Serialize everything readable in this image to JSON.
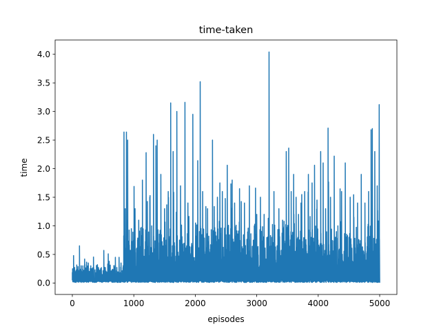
{
  "chart_data": {
    "type": "line",
    "title": "time-taken",
    "xlabel": "episodes",
    "ylabel": "time",
    "xlim": [
      -280,
      5280
    ],
    "ylim": [
      -0.2,
      4.25
    ],
    "xticks": [
      0,
      1000,
      2000,
      3000,
      4000,
      5000
    ],
    "xtick_labels": [
      "0",
      "1000",
      "2000",
      "3000",
      "4000",
      "5000"
    ],
    "yticks": [
      0.0,
      0.5,
      1.0,
      1.5,
      2.0,
      2.5,
      3.0,
      3.5,
      4.0
    ],
    "ytick_labels": [
      "0.0",
      "0.5",
      "1.0",
      "1.5",
      "2.0",
      "2.5",
      "3.0",
      "3.5",
      "4.0"
    ],
    "grid": false,
    "legend": "none",
    "series": [
      {
        "color": "#1f77b4",
        "episodes": 5000,
        "baseline": 0.05,
        "phases": [
          {
            "from": 0,
            "to": 830,
            "typical_max": 0.3
          },
          {
            "from": 830,
            "to": 5000,
            "typical_max": 1.1
          }
        ],
        "spikes": [
          [
            5,
            0.25
          ],
          [
            20,
            0.48
          ],
          [
            60,
            0.22
          ],
          [
            115,
            0.65
          ],
          [
            170,
            0.3
          ],
          [
            200,
            0.42
          ],
          [
            260,
            0.35
          ],
          [
            300,
            0.3
          ],
          [
            420,
            0.25
          ],
          [
            510,
            0.57
          ],
          [
            600,
            0.38
          ],
          [
            700,
            0.45
          ],
          [
            760,
            0.45
          ],
          [
            790,
            0.35
          ],
          [
            840,
            2.64
          ],
          [
            860,
            1.3
          ],
          [
            880,
            2.64
          ],
          [
            900,
            2.5
          ],
          [
            960,
            0.95
          ],
          [
            1020,
            1.3
          ],
          [
            1080,
            1.1
          ],
          [
            1140,
            1.8
          ],
          [
            1200,
            2.28
          ],
          [
            1260,
            1.5
          ],
          [
            1320,
            2.6
          ],
          [
            1360,
            2.4
          ],
          [
            1380,
            2.5
          ],
          [
            1440,
            1.9
          ],
          [
            1500,
            1.3
          ],
          [
            1560,
            1.6
          ],
          [
            1600,
            3.15
          ],
          [
            1640,
            2.3
          ],
          [
            1700,
            3.0
          ],
          [
            1760,
            1.7
          ],
          [
            1830,
            3.16
          ],
          [
            1880,
            1.4
          ],
          [
            1960,
            2.95
          ],
          [
            2040,
            2.14
          ],
          [
            2080,
            3.52
          ],
          [
            2120,
            1.6
          ],
          [
            2200,
            1.3
          ],
          [
            2280,
            2.5
          ],
          [
            2360,
            1.5
          ],
          [
            2400,
            1.75
          ],
          [
            2440,
            1.6
          ],
          [
            2520,
            2.06
          ],
          [
            2600,
            1.8
          ],
          [
            2640,
            1.4
          ],
          [
            2720,
            1.65
          ],
          [
            2800,
            1.4
          ],
          [
            2880,
            1.7
          ],
          [
            2960,
            1.0
          ],
          [
            3000,
            1.2
          ],
          [
            3060,
            1.5
          ],
          [
            3120,
            1.2
          ],
          [
            3200,
            4.04
          ],
          [
            3280,
            1.6
          ],
          [
            3360,
            1.3
          ],
          [
            3420,
            1.1
          ],
          [
            3480,
            2.3
          ],
          [
            3520,
            2.36
          ],
          [
            3560,
            1.6
          ],
          [
            3600,
            1.9
          ],
          [
            3640,
            1.5
          ],
          [
            3680,
            1.2
          ],
          [
            3720,
            1.4
          ],
          [
            3780,
            1.6
          ],
          [
            3840,
            1.9
          ],
          [
            3900,
            1.75
          ],
          [
            3940,
            2.06
          ],
          [
            3980,
            1.45
          ],
          [
            4040,
            2.3
          ],
          [
            4080,
            2.1
          ],
          [
            4120,
            1.3
          ],
          [
            4160,
            2.71
          ],
          [
            4200,
            1.5
          ],
          [
            4260,
            2.22
          ],
          [
            4320,
            1.0
          ],
          [
            4380,
            1.6
          ],
          [
            4440,
            2.1
          ],
          [
            4520,
            1.5
          ],
          [
            4580,
            1.15
          ],
          [
            4640,
            1.4
          ],
          [
            4700,
            1.9
          ],
          [
            4760,
            1.4
          ],
          [
            4820,
            1.6
          ],
          [
            4860,
            2.68
          ],
          [
            4880,
            2.7
          ],
          [
            4920,
            2.3
          ],
          [
            4960,
            1.7
          ],
          [
            4990,
            3.12
          ],
          [
            5000,
            0.08
          ]
        ]
      }
    ]
  }
}
